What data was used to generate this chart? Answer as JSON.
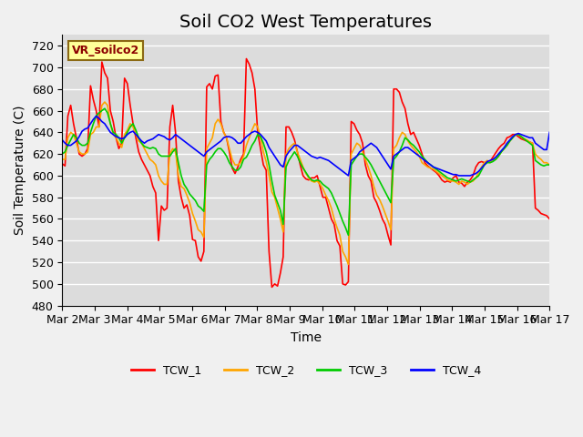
{
  "title": "Soil CO2 West Temperatures",
  "xlabel": "Time",
  "ylabel": "Soil Temperature (C)",
  "ylim": [
    480,
    730
  ],
  "yticks": [
    480,
    500,
    520,
    540,
    560,
    580,
    600,
    620,
    640,
    660,
    680,
    700,
    720
  ],
  "xlim_days": [
    2,
    17
  ],
  "xtick_labels": [
    "Mar 2",
    "Mar 3",
    "Mar 4",
    "Mar 5",
    "Mar 6",
    "Mar 7",
    "Mar 8",
    "Mar 9",
    "Mar 10",
    "Mar 11",
    "Mar 12",
    "Mar 13",
    "Mar 14",
    "Mar 15",
    "Mar 16",
    "Mar 17"
  ],
  "xtick_positions": [
    2,
    3,
    4,
    5,
    6,
    7,
    8,
    9,
    10,
    11,
    12,
    13,
    14,
    15,
    16,
    17
  ],
  "legend_label": "VR_soilco2",
  "series_labels": [
    "TCW_1",
    "TCW_2",
    "TCW_3",
    "TCW_4"
  ],
  "series_colors": [
    "#ff0000",
    "#ffa500",
    "#00cc00",
    "#0000ff"
  ],
  "background_color": "#e8e8e8",
  "plot_bg_color": "#dcdcdc",
  "grid_color": "#ffffff",
  "title_fontsize": 14,
  "axis_fontsize": 10,
  "tick_fontsize": 9,
  "legend_box_color": "#ffff99",
  "legend_box_edge": "#8B6914",
  "tcw1": [
    611,
    609,
    655,
    665,
    648,
    635,
    620,
    618,
    620,
    625,
    683,
    670,
    660,
    645,
    705,
    695,
    690,
    660,
    650,
    635,
    625,
    630,
    690,
    685,
    665,
    648,
    635,
    622,
    615,
    610,
    605,
    600,
    590,
    584,
    540,
    572,
    568,
    570,
    645,
    665,
    640,
    595,
    580,
    570,
    573,
    563,
    541,
    540,
    525,
    521,
    530,
    682,
    685,
    680,
    692,
    693,
    650,
    640,
    635,
    622,
    607,
    602,
    608,
    615,
    620,
    708,
    703,
    695,
    680,
    640,
    625,
    610,
    605,
    530,
    497,
    500,
    498,
    510,
    525,
    645,
    645,
    640,
    633,
    622,
    610,
    600,
    597,
    596,
    598,
    598,
    600,
    590,
    580,
    580,
    570,
    560,
    555,
    540,
    535,
    500,
    499,
    502,
    650,
    648,
    642,
    638,
    630,
    610,
    600,
    595,
    580,
    575,
    568,
    560,
    555,
    545,
    536,
    680,
    680,
    677,
    668,
    662,
    648,
    638,
    640,
    634,
    628,
    620,
    612,
    609,
    607,
    605,
    603,
    600,
    596,
    594,
    595,
    594,
    598,
    600,
    594,
    593,
    590,
    594,
    596,
    600,
    608,
    612,
    613,
    612,
    613,
    613,
    617,
    621,
    625,
    628,
    630,
    635,
    636,
    638,
    638,
    636,
    634,
    633,
    632,
    631,
    630,
    570,
    568,
    565,
    564,
    563,
    560
  ],
  "tcw2": [
    615,
    615,
    635,
    640,
    638,
    630,
    622,
    620,
    620,
    622,
    638,
    640,
    645,
    645,
    665,
    668,
    665,
    648,
    638,
    635,
    630,
    626,
    638,
    642,
    648,
    645,
    638,
    632,
    630,
    625,
    620,
    615,
    613,
    610,
    600,
    595,
    592,
    592,
    620,
    625,
    622,
    600,
    590,
    588,
    582,
    575,
    565,
    558,
    550,
    548,
    543,
    625,
    630,
    635,
    648,
    652,
    648,
    640,
    635,
    625,
    615,
    610,
    610,
    612,
    618,
    628,
    635,
    642,
    648,
    645,
    635,
    622,
    613,
    600,
    585,
    580,
    570,
    560,
    548,
    620,
    625,
    628,
    630,
    622,
    615,
    608,
    602,
    598,
    595,
    594,
    595,
    592,
    588,
    582,
    577,
    570,
    560,
    552,
    545,
    530,
    525,
    518,
    620,
    625,
    630,
    628,
    622,
    615,
    608,
    600,
    590,
    582,
    578,
    572,
    565,
    558,
    550,
    625,
    628,
    635,
    640,
    638,
    632,
    628,
    625,
    622,
    618,
    612,
    610,
    608,
    607,
    606,
    604,
    602,
    600,
    598,
    596,
    595,
    595,
    594,
    592,
    595,
    594,
    592,
    594,
    595,
    598,
    603,
    608,
    612,
    614,
    612,
    614,
    615,
    618,
    622,
    625,
    628,
    632,
    635,
    638,
    638,
    636,
    634,
    633,
    631,
    630,
    620,
    617,
    615,
    612,
    612,
    610
  ],
  "tcw3": [
    620,
    622,
    628,
    633,
    638,
    635,
    630,
    628,
    628,
    630,
    640,
    648,
    655,
    658,
    660,
    662,
    658,
    648,
    640,
    638,
    635,
    630,
    635,
    640,
    645,
    648,
    642,
    635,
    630,
    627,
    626,
    625,
    626,
    625,
    620,
    618,
    618,
    618,
    618,
    622,
    625,
    612,
    600,
    592,
    588,
    583,
    580,
    577,
    572,
    570,
    567,
    610,
    615,
    618,
    622,
    625,
    625,
    622,
    618,
    612,
    608,
    605,
    605,
    608,
    615,
    617,
    622,
    628,
    632,
    638,
    636,
    630,
    622,
    610,
    595,
    582,
    575,
    568,
    555,
    608,
    614,
    618,
    622,
    618,
    612,
    607,
    603,
    599,
    596,
    595,
    596,
    595,
    592,
    590,
    588,
    584,
    578,
    572,
    565,
    558,
    552,
    545,
    610,
    614,
    618,
    620,
    620,
    617,
    614,
    610,
    605,
    600,
    595,
    590,
    585,
    580,
    575,
    615,
    618,
    622,
    628,
    635,
    633,
    630,
    628,
    625,
    622,
    618,
    615,
    612,
    610,
    608,
    606,
    604,
    602,
    600,
    598,
    597,
    596,
    595,
    596,
    597,
    596,
    595,
    594,
    596,
    598,
    600,
    605,
    610,
    612,
    612,
    613,
    615,
    618,
    622,
    625,
    628,
    632,
    635,
    638,
    638,
    636,
    634,
    632,
    630,
    628,
    614,
    612,
    610,
    609,
    610,
    610
  ],
  "tcw4": [
    633,
    630,
    628,
    628,
    630,
    632,
    636,
    641,
    643,
    644,
    648,
    652,
    655,
    653,
    650,
    648,
    644,
    640,
    638,
    636,
    635,
    634,
    635,
    638,
    640,
    641,
    638,
    635,
    632,
    630,
    632,
    633,
    634,
    636,
    638,
    637,
    636,
    634,
    633,
    635,
    638,
    636,
    634,
    632,
    630,
    628,
    626,
    624,
    622,
    620,
    618,
    622,
    624,
    626,
    628,
    630,
    632,
    635,
    636,
    636,
    635,
    633,
    630,
    630,
    633,
    636,
    638,
    640,
    641,
    640,
    638,
    635,
    632,
    626,
    622,
    618,
    614,
    610,
    608,
    618,
    622,
    625,
    628,
    628,
    626,
    624,
    622,
    620,
    618,
    617,
    616,
    617,
    616,
    615,
    614,
    612,
    610,
    608,
    606,
    604,
    602,
    600,
    614,
    616,
    618,
    622,
    624,
    626,
    628,
    630,
    628,
    626,
    622,
    618,
    614,
    610,
    606,
    618,
    620,
    622,
    624,
    626,
    626,
    624,
    622,
    620,
    618,
    616,
    614,
    612,
    610,
    608,
    607,
    606,
    605,
    604,
    603,
    602,
    601,
    601,
    600,
    600,
    600,
    600,
    600,
    601,
    602,
    604,
    607,
    610,
    613,
    614,
    615,
    617,
    620,
    623,
    626,
    630,
    633,
    636,
    638,
    639,
    638,
    637,
    636,
    635,
    635,
    630,
    628,
    626,
    624,
    624,
    640
  ]
}
